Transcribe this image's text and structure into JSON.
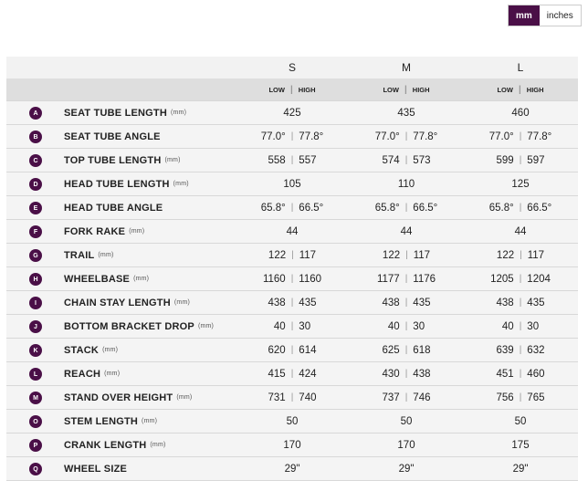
{
  "units_toggle": [
    "mm",
    "inches"
  ],
  "table": {
    "sizes": [
      "S",
      "M",
      "L"
    ],
    "subheader": [
      "LOW",
      "HIGH"
    ],
    "rows": [
      {
        "letter": "A",
        "name": "SEAT TUBE LENGTH",
        "unit": "(mm)",
        "cells": [
          [
            "425"
          ],
          [
            "435"
          ],
          [
            "460"
          ]
        ]
      },
      {
        "letter": "B",
        "name": "SEAT TUBE ANGLE",
        "cells": [
          [
            "77.0°",
            "77.8°"
          ],
          [
            "77.0°",
            "77.8°"
          ],
          [
            "77.0°",
            "77.8°"
          ]
        ]
      },
      {
        "letter": "C",
        "name": "TOP TUBE LENGTH",
        "unit": "(mm)",
        "cells": [
          [
            "558",
            "557"
          ],
          [
            "574",
            "573"
          ],
          [
            "599",
            "597"
          ]
        ]
      },
      {
        "letter": "D",
        "name": "HEAD TUBE LENGTH",
        "unit": "(mm)",
        "cells": [
          [
            "105"
          ],
          [
            "110"
          ],
          [
            "125"
          ]
        ]
      },
      {
        "letter": "E",
        "name": "HEAD TUBE ANGLE",
        "cells": [
          [
            "65.8°",
            "66.5°"
          ],
          [
            "65.8°",
            "66.5°"
          ],
          [
            "65.8°",
            "66.5°"
          ]
        ]
      },
      {
        "letter": "F",
        "name": "FORK RAKE",
        "unit": "(mm)",
        "cells": [
          [
            "44"
          ],
          [
            "44"
          ],
          [
            "44"
          ]
        ]
      },
      {
        "letter": "G",
        "name": "TRAIL",
        "unit": "(mm)",
        "cells": [
          [
            "122",
            "117"
          ],
          [
            "122",
            "117"
          ],
          [
            "122",
            "117"
          ]
        ]
      },
      {
        "letter": "H",
        "name": "WHEELBASE",
        "unit": "(mm)",
        "cells": [
          [
            "1160",
            "1160"
          ],
          [
            "1177",
            "1176"
          ],
          [
            "1205",
            "1204"
          ]
        ]
      },
      {
        "letter": "I",
        "name": "CHAIN STAY LENGTH",
        "unit": "(mm)",
        "cells": [
          [
            "438",
            "435"
          ],
          [
            "438",
            "435"
          ],
          [
            "438",
            "435"
          ]
        ]
      },
      {
        "letter": "J",
        "name": "BOTTOM BRACKET DROP",
        "unit": "(mm)",
        "cells": [
          [
            "40",
            "30"
          ],
          [
            "40",
            "30"
          ],
          [
            "40",
            "30"
          ]
        ]
      },
      {
        "letter": "K",
        "name": "STACK",
        "unit": "(mm)",
        "cells": [
          [
            "620",
            "614"
          ],
          [
            "625",
            "618"
          ],
          [
            "639",
            "632"
          ]
        ]
      },
      {
        "letter": "L",
        "name": "REACH",
        "unit": "(mm)",
        "cells": [
          [
            "415",
            "424"
          ],
          [
            "430",
            "438"
          ],
          [
            "451",
            "460"
          ]
        ]
      },
      {
        "letter": "M",
        "name": "STAND OVER HEIGHT",
        "unit": "(mm)",
        "cells": [
          [
            "731",
            "740"
          ],
          [
            "737",
            "746"
          ],
          [
            "756",
            "765"
          ]
        ]
      },
      {
        "letter": "O",
        "name": "STEM LENGTH",
        "unit": "(mm)",
        "cells": [
          [
            "50"
          ],
          [
            "50"
          ],
          [
            "50"
          ]
        ]
      },
      {
        "letter": "P",
        "name": "CRANK LENGTH",
        "unit": "(mm)",
        "cells": [
          [
            "170"
          ],
          [
            "170"
          ],
          [
            "175"
          ]
        ]
      },
      {
        "letter": "Q",
        "name": "WHEEL SIZE",
        "cells": [
          [
            "29\""
          ],
          [
            "29\""
          ],
          [
            "29\""
          ]
        ]
      }
    ]
  }
}
